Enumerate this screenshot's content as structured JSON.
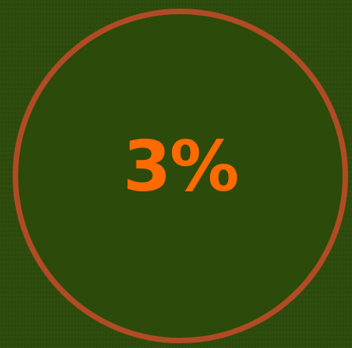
{
  "progress": {
    "value_label": "3%",
    "value_percent": 3,
    "colors": {
      "background": "#2d4a0b",
      "ring": "#b14b25",
      "text": "#ff6a00"
    }
  }
}
